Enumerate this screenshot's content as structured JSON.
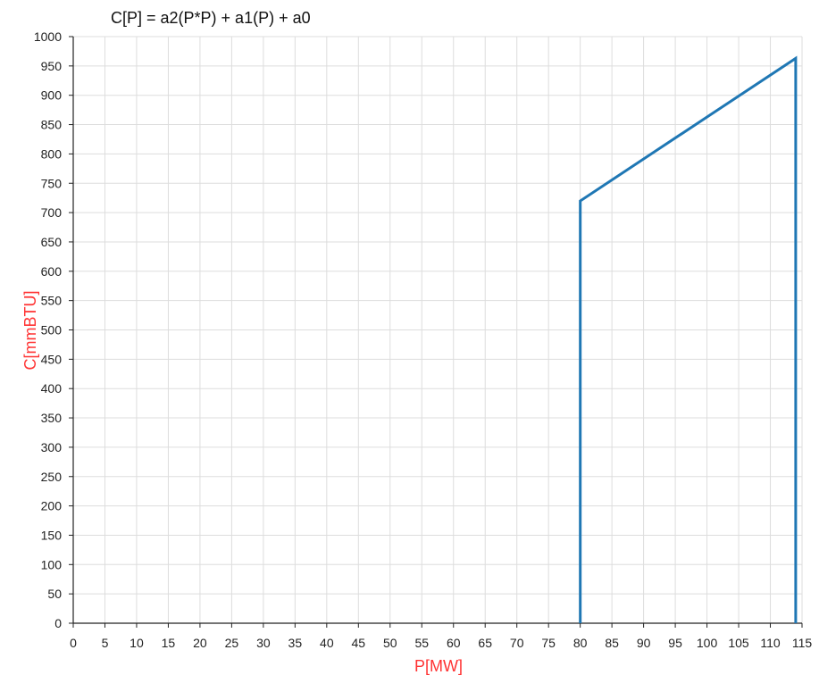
{
  "chart_data": {
    "type": "line",
    "title": "C[P] = a2(P*P) + a1(P) + a0",
    "xlabel": "P[MW]",
    "ylabel": "C[mmBTU]",
    "xlim": [
      0,
      115
    ],
    "ylim": [
      0,
      1000
    ],
    "x_ticks": [
      0,
      5,
      10,
      15,
      20,
      25,
      30,
      35,
      40,
      45,
      50,
      55,
      60,
      65,
      70,
      75,
      80,
      85,
      90,
      95,
      100,
      105,
      110,
      115
    ],
    "y_ticks": [
      0,
      50,
      100,
      150,
      200,
      250,
      300,
      350,
      400,
      450,
      500,
      550,
      600,
      650,
      700,
      750,
      800,
      850,
      900,
      950,
      1000
    ],
    "grid": true,
    "series": [
      {
        "x": [
          80,
          80,
          114,
          114
        ],
        "y": [
          0,
          720,
          963,
          0
        ]
      }
    ]
  },
  "colors": {
    "line": "#1f77b4",
    "axis_label": "#ff3333",
    "grid": "#dddddd",
    "axis": "#222222"
  }
}
